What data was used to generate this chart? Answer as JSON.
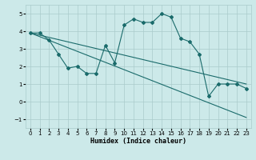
{
  "xlabel": "Humidex (Indice chaleur)",
  "xlim": [
    -0.5,
    23.5
  ],
  "ylim": [
    -1.5,
    5.5
  ],
  "yticks": [
    -1,
    0,
    1,
    2,
    3,
    4,
    5
  ],
  "xticks": [
    0,
    1,
    2,
    3,
    4,
    5,
    6,
    7,
    8,
    9,
    10,
    11,
    12,
    13,
    14,
    15,
    16,
    17,
    18,
    19,
    20,
    21,
    22,
    23
  ],
  "bg_color": "#cce9e9",
  "line_color": "#1a6b6b",
  "grid_color": "#aacccc",
  "line1_x": [
    0,
    1,
    2,
    3,
    4,
    5,
    6,
    7,
    8,
    9,
    10,
    11,
    12,
    13,
    14,
    15,
    16,
    17,
    18,
    19,
    20,
    21,
    22,
    23
  ],
  "line1_y": [
    3.9,
    3.9,
    3.5,
    2.7,
    1.9,
    2.0,
    1.6,
    1.6,
    3.2,
    2.2,
    4.35,
    4.7,
    4.5,
    4.5,
    5.0,
    4.8,
    3.6,
    3.4,
    2.7,
    0.3,
    1.0,
    1.0,
    1.0,
    0.75
  ],
  "line2_x": [
    0,
    23
  ],
  "line2_y": [
    3.9,
    1.0
  ],
  "line3_x": [
    0,
    23
  ],
  "line3_y": [
    3.9,
    -0.9
  ]
}
